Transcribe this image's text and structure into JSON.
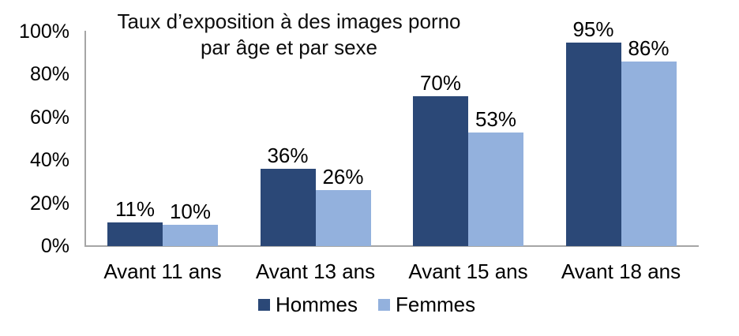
{
  "chart_data": {
    "type": "bar",
    "title": "Taux d’exposition à des images porno par âge et par sexe",
    "title_display": "Taux d’exposition à des images porno\npar âge et par sexe",
    "categories": [
      "Avant 11 ans",
      "Avant 13 ans",
      "Avant 15 ans",
      "Avant 18 ans"
    ],
    "series": [
      {
        "name": "Hommes",
        "color": "#2b4877",
        "values": [
          11,
          36,
          70,
          95
        ],
        "labels": [
          "11%",
          "36%",
          "70%",
          "95%"
        ]
      },
      {
        "name": "Femmes",
        "color": "#93b1dd",
        "values": [
          10,
          26,
          53,
          86
        ],
        "labels": [
          "10%",
          "26%",
          "53%",
          "86%"
        ]
      }
    ],
    "y_axis": {
      "min": 0,
      "max": 100,
      "ticks": [
        {
          "label": "100%",
          "value": 100
        },
        {
          "label": "80%",
          "value": 80
        },
        {
          "label": "60%",
          "value": 60
        },
        {
          "label": "40%",
          "value": 40
        },
        {
          "label": "20%",
          "value": 20
        },
        {
          "label": "0%",
          "value": 0
        }
      ]
    },
    "xlabel": "",
    "ylabel": "",
    "grid": false,
    "legend_position": "bottom",
    "axis_color": "#a6a6a6",
    "text_color": "#000000",
    "background_color": "#ffffff"
  }
}
